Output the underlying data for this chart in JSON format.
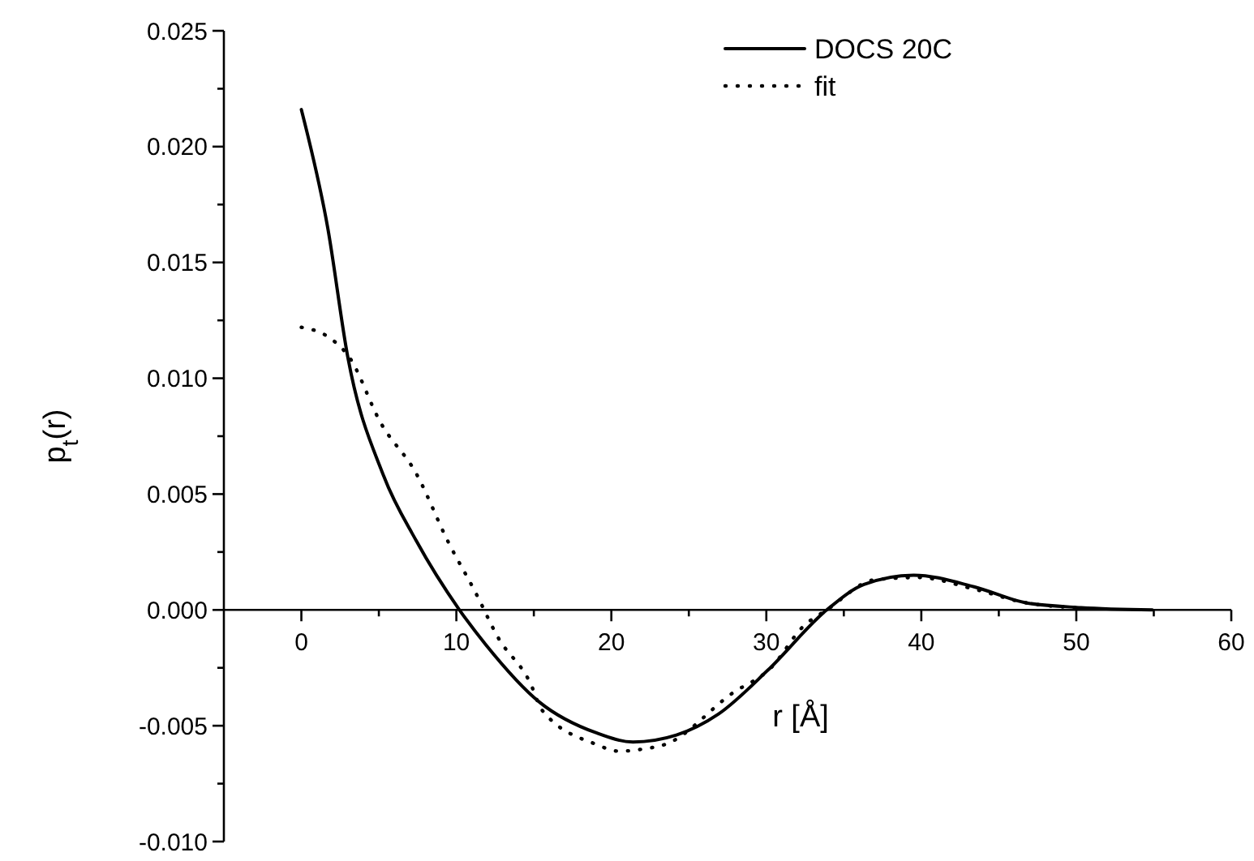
{
  "chart_data": {
    "type": "line",
    "xlabel": "r [Å]",
    "ylabel": "p$_{t}$(r)",
    "xlim": [
      -5,
      60
    ],
    "xticks": [
      0,
      {
        "value": 5,
        "label": null
      },
      10,
      {
        "value": 15,
        "label": null
      },
      20,
      {
        "value": 25,
        "label": null
      },
      30,
      {
        "value": 35,
        "label": null
      },
      40,
      {
        "value": 45,
        "label": null
      },
      50,
      {
        "value": 55,
        "label": null
      },
      60
    ],
    "ylim": [
      -0.01,
      0.025
    ],
    "yticks": [
      {
        "value": -0.01,
        "label": "-0.010"
      },
      {
        "value": -0.0075,
        "label": null
      },
      {
        "value": -0.005,
        "label": "-0.005"
      },
      {
        "value": -0.0025,
        "label": null
      },
      {
        "value": 0,
        "label": "0.000"
      },
      {
        "value": 0.0025,
        "label": null
      },
      {
        "value": 0.005,
        "label": "0.005"
      },
      {
        "value": 0.0075,
        "label": null
      },
      {
        "value": 0.01,
        "label": "0.010"
      },
      {
        "value": 0.0125,
        "label": null
      },
      {
        "value": 0.015,
        "label": "0.015"
      },
      {
        "value": 0.0175,
        "label": null
      },
      {
        "value": 0.02,
        "label": "0.020"
      },
      {
        "value": 0.0225,
        "label": null
      },
      {
        "value": 0.025,
        "label": "0.025"
      }
    ],
    "legend": "top right",
    "grid": false,
    "marker": "none",
    "series": [
      {
        "name": "DOCS 20C",
        "color": "#000000",
        "line_style": "solid",
        "x": [
          0,
          1.7,
          3.0,
          5.3,
          7.4,
          10.2,
          11.9,
          15.4,
          19,
          21.4,
          24.2,
          26.9,
          30.1,
          33.9,
          36.3,
          39.5,
          43.4,
          46.8,
          50.3,
          54.9
        ],
        "values": [
          0.0216,
          0.0165,
          0.0109,
          0.0058,
          0.003,
          0,
          -0.0015,
          -0.004,
          -0.0053,
          -0.0057,
          -0.0054,
          -0.0045,
          -0.0026,
          0,
          0.0011,
          0.0015,
          0.001,
          0.0003,
          0.0001,
          0
        ]
      },
      {
        "name": "fit",
        "color": "#000000",
        "line_style": "dotted",
        "x": [
          0,
          1.7,
          3.1,
          5.1,
          7.4,
          9.5,
          11.2,
          12.7,
          14.8,
          15.5,
          19,
          20.5,
          22.1,
          23.5,
          27.8,
          30.3,
          32.4,
          33.9,
          37,
          39.8,
          43.4,
          46.8,
          50
        ],
        "values": [
          0.0122,
          0.0118,
          0.0109,
          0.0081,
          0.0059,
          0.0029,
          0.0008,
          -0.0012,
          -0.0032,
          -0.0043,
          -0.0058,
          -0.0061,
          -0.006,
          -0.0058,
          -0.0036,
          -0.0025,
          -0.0007,
          0,
          0.0013,
          0.0014,
          0.0009,
          0.0003,
          0.0001
        ]
      }
    ]
  }
}
